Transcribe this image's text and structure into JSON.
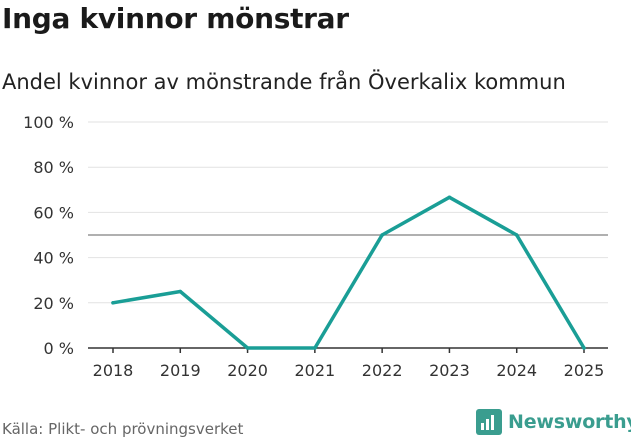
{
  "header": {
    "title": "Inga kvinnor mönstrar",
    "subtitle": "Andel kvinnor av mönstrande från Överkalix kommun"
  },
  "footer": {
    "source": "Källa: Plikt- och prövningsverket",
    "brand": "Newsworthy",
    "brand_icon": "newsworthy-logo-icon"
  },
  "colors": {
    "line": "#1a9e96",
    "grid": "#e2e2e2",
    "reference_line": "#808080",
    "axis": "#333333",
    "brand": "#3a9d8f"
  },
  "chart_data": {
    "type": "line",
    "title": "Inga kvinnor mönstrar",
    "subtitle": "Andel kvinnor av mönstrande från Överkalix kommun",
    "xlabel": "",
    "ylabel": "",
    "x": [
      "2018",
      "2019",
      "2020",
      "2021",
      "2022",
      "2023",
      "2024",
      "2025"
    ],
    "series": [
      {
        "values": [
          20,
          25,
          0,
          0,
          50,
          66.7,
          50,
          0
        ]
      }
    ],
    "reference_line": 50,
    "ylim": [
      0,
      100
    ],
    "yticks": [
      0,
      20,
      40,
      60,
      80,
      100
    ],
    "ytick_labels": [
      "0 %",
      "20 %",
      "40 %",
      "60 %",
      "80 %",
      "100 %"
    ],
    "grid": true,
    "legend": "none"
  }
}
